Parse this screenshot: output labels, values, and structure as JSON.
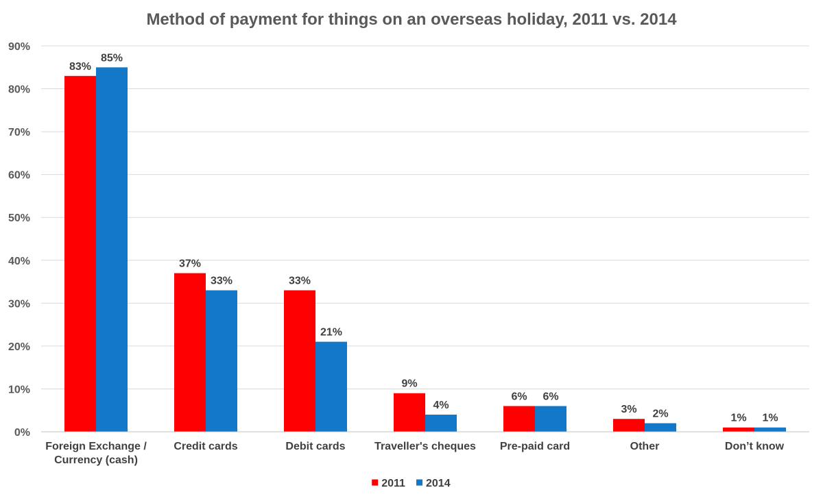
{
  "chart_data": {
    "type": "bar",
    "title": "Method of payment for things on an overseas holiday, 2011 vs. 2014",
    "xlabel": "",
    "ylabel": "",
    "categories": [
      [
        "Foreign Exchange /",
        "Currency (cash)"
      ],
      [
        "Credit cards"
      ],
      [
        "Debit cards"
      ],
      [
        "Traveller's cheques"
      ],
      [
        "Pre-paid card"
      ],
      [
        "Other"
      ],
      [
        "Don’t know"
      ]
    ],
    "series": [
      {
        "name": "2011",
        "color": "#ff0000",
        "values": [
          83,
          37,
          33,
          9,
          6,
          3,
          1
        ]
      },
      {
        "name": "2014",
        "color": "#1478c8",
        "values": [
          85,
          33,
          21,
          4,
          6,
          2,
          1
        ]
      }
    ],
    "ylim": [
      0,
      90
    ],
    "yticks": [
      0,
      10,
      20,
      30,
      40,
      50,
      60,
      70,
      80,
      90
    ],
    "value_suffix": "%",
    "grid": true,
    "legend_position": "bottom"
  }
}
